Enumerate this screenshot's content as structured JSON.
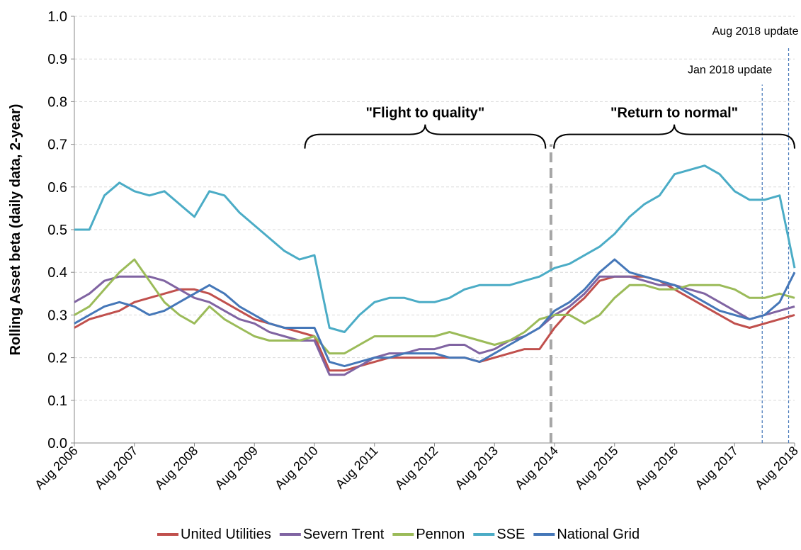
{
  "chart_data": {
    "type": "line",
    "y_label": "Rolling Asset beta (daily data, 2-year)",
    "x": [
      2006.58,
      2006.83,
      2007.08,
      2007.33,
      2007.58,
      2007.83,
      2008.08,
      2008.33,
      2008.58,
      2008.83,
      2009.08,
      2009.33,
      2009.58,
      2009.83,
      2010.08,
      2010.33,
      2010.58,
      2010.83,
      2011.08,
      2011.33,
      2011.58,
      2011.83,
      2012.08,
      2012.33,
      2012.58,
      2012.83,
      2013.08,
      2013.33,
      2013.58,
      2013.83,
      2014.08,
      2014.33,
      2014.58,
      2014.83,
      2015.08,
      2015.33,
      2015.58,
      2015.83,
      2016.08,
      2016.33,
      2016.58,
      2016.83,
      2017.08,
      2017.33,
      2017.58,
      2017.83,
      2018.08,
      2018.33,
      2018.58
    ],
    "xlim": [
      2006.58,
      2018.58
    ],
    "xticks": [
      {
        "value": 2006.58,
        "label": "Aug 2006"
      },
      {
        "value": 2007.58,
        "label": "Aug 2007"
      },
      {
        "value": 2008.58,
        "label": "Aug 2008"
      },
      {
        "value": 2009.58,
        "label": "Aug 2009"
      },
      {
        "value": 2010.58,
        "label": "Aug 2010"
      },
      {
        "value": 2011.58,
        "label": "Aug 2011"
      },
      {
        "value": 2012.58,
        "label": "Aug 2012"
      },
      {
        "value": 2013.58,
        "label": "Aug 2013"
      },
      {
        "value": 2014.58,
        "label": "Aug 2014"
      },
      {
        "value": 2015.58,
        "label": "Aug 2015"
      },
      {
        "value": 2016.58,
        "label": "Aug 2016"
      },
      {
        "value": 2017.58,
        "label": "Aug 2017"
      },
      {
        "value": 2018.58,
        "label": "Aug 2018"
      }
    ],
    "ylim": [
      0,
      1
    ],
    "yticks": [
      {
        "value": 0,
        "label": "0.0"
      },
      0.1,
      0.2,
      0.3,
      0.4,
      0.5,
      0.6,
      0.7,
      0.8,
      0.9,
      {
        "value": 1,
        "label": "1.0"
      }
    ],
    "grid": true,
    "series": [
      {
        "name": "United Utilities",
        "color": "#c0504d",
        "values": [
          0.27,
          0.29,
          0.3,
          0.31,
          0.33,
          0.34,
          0.35,
          0.36,
          0.36,
          0.35,
          0.33,
          0.31,
          0.29,
          0.28,
          0.27,
          0.26,
          0.25,
          0.17,
          0.17,
          0.18,
          0.19,
          0.2,
          0.2,
          0.2,
          0.2,
          0.2,
          0.2,
          0.19,
          0.2,
          0.21,
          0.22,
          0.22,
          0.27,
          0.31,
          0.34,
          0.38,
          0.39,
          0.39,
          0.39,
          0.38,
          0.36,
          0.34,
          0.32,
          0.3,
          0.28,
          0.27,
          0.28,
          0.29,
          0.3
        ]
      },
      {
        "name": "Severn Trent",
        "color": "#8064a2",
        "values": [
          0.33,
          0.35,
          0.38,
          0.39,
          0.39,
          0.39,
          0.38,
          0.36,
          0.34,
          0.33,
          0.31,
          0.29,
          0.28,
          0.26,
          0.25,
          0.24,
          0.24,
          0.16,
          0.16,
          0.18,
          0.2,
          0.21,
          0.21,
          0.22,
          0.22,
          0.23,
          0.23,
          0.21,
          0.22,
          0.24,
          0.25,
          0.27,
          0.3,
          0.32,
          0.35,
          0.39,
          0.39,
          0.39,
          0.38,
          0.37,
          0.37,
          0.36,
          0.35,
          0.33,
          0.31,
          0.29,
          0.3,
          0.31,
          0.32
        ]
      },
      {
        "name": "Pennon",
        "color": "#9bbb59",
        "values": [
          0.3,
          0.32,
          0.36,
          0.4,
          0.43,
          0.38,
          0.33,
          0.3,
          0.28,
          0.32,
          0.29,
          0.27,
          0.25,
          0.24,
          0.24,
          0.24,
          0.25,
          0.21,
          0.21,
          0.23,
          0.25,
          0.25,
          0.25,
          0.25,
          0.25,
          0.26,
          0.25,
          0.24,
          0.23,
          0.24,
          0.26,
          0.29,
          0.3,
          0.3,
          0.28,
          0.3,
          0.34,
          0.37,
          0.37,
          0.36,
          0.36,
          0.37,
          0.37,
          0.37,
          0.36,
          0.34,
          0.34,
          0.35,
          0.34
        ]
      },
      {
        "name": "SSE",
        "color": "#4bacc6",
        "values": [
          0.5,
          0.5,
          0.58,
          0.61,
          0.59,
          0.58,
          0.59,
          0.56,
          0.53,
          0.59,
          0.58,
          0.54,
          0.51,
          0.48,
          0.45,
          0.43,
          0.44,
          0.27,
          0.26,
          0.3,
          0.33,
          0.34,
          0.34,
          0.33,
          0.33,
          0.34,
          0.36,
          0.37,
          0.37,
          0.37,
          0.38,
          0.39,
          0.41,
          0.42,
          0.44,
          0.46,
          0.49,
          0.53,
          0.56,
          0.58,
          0.63,
          0.64,
          0.65,
          0.63,
          0.59,
          0.57,
          0.57,
          0.58,
          0.41
        ]
      },
      {
        "name": "National Grid",
        "color": "#4577b8",
        "values": [
          0.28,
          0.3,
          0.32,
          0.33,
          0.32,
          0.3,
          0.31,
          0.33,
          0.35,
          0.37,
          0.35,
          0.32,
          0.3,
          0.28,
          0.27,
          0.27,
          0.27,
          0.19,
          0.18,
          0.19,
          0.2,
          0.2,
          0.21,
          0.21,
          0.21,
          0.2,
          0.2,
          0.19,
          0.21,
          0.23,
          0.25,
          0.27,
          0.31,
          0.33,
          0.36,
          0.4,
          0.43,
          0.4,
          0.39,
          0.38,
          0.37,
          0.35,
          0.33,
          0.31,
          0.3,
          0.29,
          0.3,
          0.33,
          0.4
        ]
      }
    ],
    "braces": [
      {
        "text": "\"Flight to quality\"",
        "x1": 2010.42,
        "x2": 2014.43,
        "y": 0.69
      },
      {
        "text": "\"Return to normal\"",
        "x1": 2014.57,
        "x2": 2018.58,
        "y": 0.69
      }
    ],
    "vlines": [
      {
        "x": 2014.52,
        "top": 0.7,
        "color": "#a6a6a6"
      },
      {
        "x": 2018.04,
        "top": 0.84,
        "color": "#4577b8",
        "label": "Jan 2018 update"
      },
      {
        "x": 2018.48,
        "top": 0.93,
        "color": "#4577b8",
        "label": "Aug 2018 update"
      }
    ]
  }
}
